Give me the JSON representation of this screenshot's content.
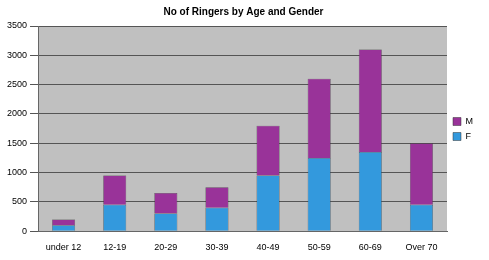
{
  "chart_data": {
    "type": "bar",
    "title": "No of Ringers by Age and Gender",
    "categories": [
      "under 12",
      "12-19",
      "20-29",
      "30-39",
      "40-49",
      "50-59",
      "60-69",
      "Over 70"
    ],
    "series": [
      {
        "name": "F",
        "color": "#3399dd",
        "values": [
          100,
          450,
          300,
          400,
          950,
          1250,
          1350,
          450
        ]
      },
      {
        "name": "M",
        "color": "#993399",
        "values": [
          100,
          500,
          350,
          350,
          850,
          1350,
          1750,
          1050
        ]
      }
    ],
    "stacked": true,
    "ylim": [
      0,
      3500
    ],
    "yticks": [
      0,
      500,
      1000,
      1500,
      2000,
      2500,
      3000,
      3500
    ],
    "grid": true,
    "legend": "right"
  }
}
